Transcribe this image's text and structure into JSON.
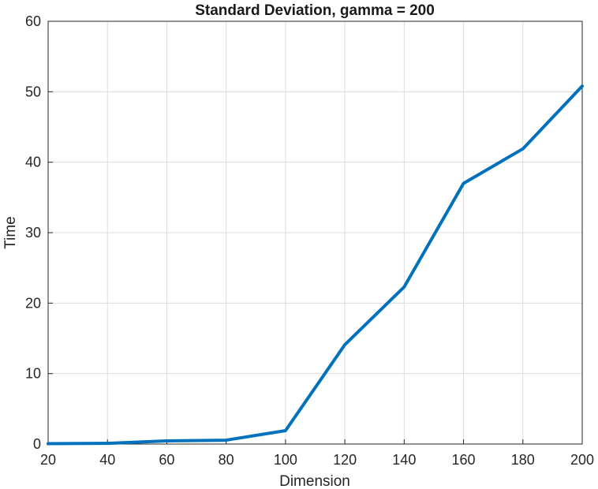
{
  "chart_data": {
    "type": "line",
    "title": "Standard Deviation, gamma = 200",
    "xlabel": "Dimension",
    "ylabel": "Time",
    "xlim": [
      20,
      200
    ],
    "ylim": [
      0,
      60
    ],
    "xticks": [
      20,
      40,
      60,
      80,
      100,
      120,
      140,
      160,
      180,
      200
    ],
    "yticks": [
      0,
      10,
      20,
      30,
      40,
      50,
      60
    ],
    "xtick_labels": [
      "20",
      "40",
      "60",
      "80",
      "100",
      "120",
      "140",
      "160",
      "180",
      "200"
    ],
    "ytick_labels": [
      "0",
      "10",
      "20",
      "30",
      "40",
      "50",
      "60"
    ],
    "grid": true,
    "legend": false,
    "series": [
      {
        "color": "#0072BD",
        "x": [
          20,
          40,
          60,
          80,
          100,
          120,
          140,
          160,
          180,
          200
        ],
        "y": [
          0.05,
          0.1,
          0.45,
          0.55,
          1.9,
          14.1,
          22.3,
          37.0,
          41.9,
          50.8
        ]
      }
    ]
  }
}
